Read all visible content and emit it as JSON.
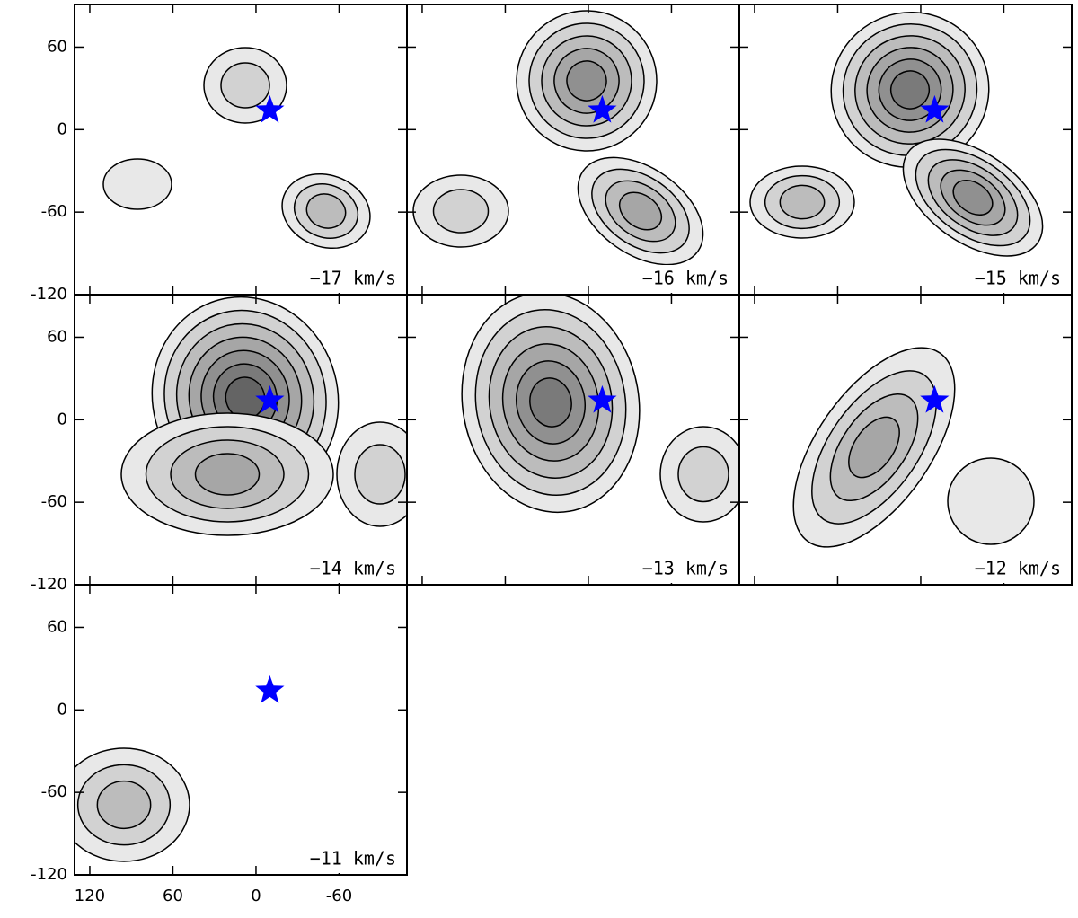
{
  "chart_data": {
    "type": "channel-map",
    "xlim": [
      131,
      -109
    ],
    "ylim": [
      -120,
      91
    ],
    "xticks": [
      120,
      60,
      0,
      -60
    ],
    "yticks": [
      -120,
      -60,
      0,
      60
    ],
    "star": {
      "x": -10,
      "y": 14,
      "color": "#0000ff"
    },
    "panels": [
      {
        "label": "−17 km/s"
      },
      {
        "label": "−16 km/s"
      },
      {
        "label": "−15 km/s"
      },
      {
        "label": "−14 km/s"
      },
      {
        "label": "−13 km/s"
      },
      {
        "label": "−12 km/s"
      },
      {
        "label": "−11 km/s"
      }
    ]
  }
}
